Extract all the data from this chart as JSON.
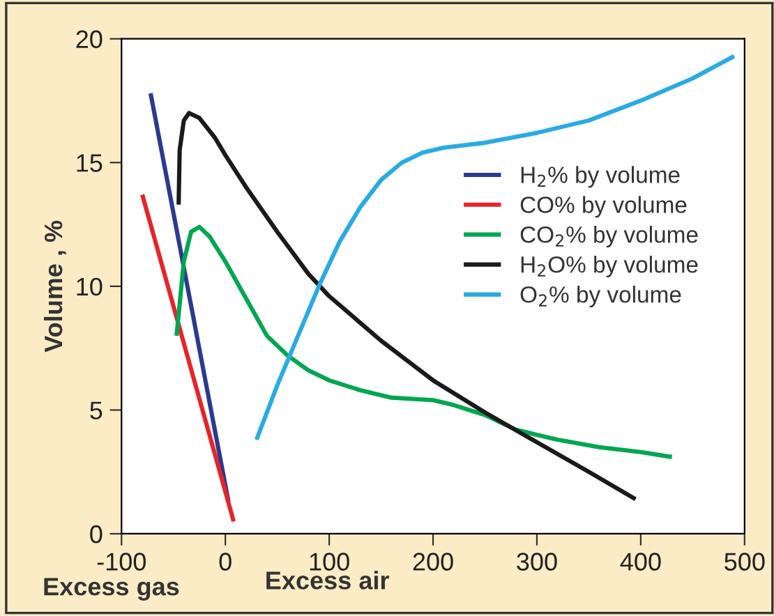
{
  "chart_data": {
    "type": "line",
    "ylabel": "Volume , %",
    "xlabel": "Excess air",
    "annotations": [
      "Excess gas"
    ],
    "xlim": [
      -100,
      500
    ],
    "ylim": [
      0,
      20
    ],
    "xticks": [
      -100,
      0,
      100,
      200,
      300,
      400,
      500
    ],
    "yticks": [
      0,
      5,
      10,
      15,
      20
    ],
    "grid": false,
    "legend": "right",
    "marker": "none",
    "line_style": "solid",
    "series": [
      {
        "name": "H$_{2}$% by volume",
        "color": "#2b3a8f",
        "x": [
          -72,
          3
        ],
        "values": [
          17.8,
          1.3
        ]
      },
      {
        "name": "CO% by volume",
        "color": "#e8232a",
        "x": [
          -80,
          8
        ],
        "values": [
          13.7,
          0.5
        ]
      },
      {
        "name": "CO$_{2}$% by volume",
        "color": "#00a651",
        "x": [
          -47,
          -40,
          -33,
          -25,
          -15,
          0,
          20,
          40,
          60,
          80,
          100,
          130,
          160,
          200,
          220,
          250,
          280,
          320,
          360,
          400,
          430
        ],
        "values": [
          8.0,
          11.0,
          12.2,
          12.4,
          12.0,
          11.0,
          9.5,
          8.0,
          7.2,
          6.6,
          6.2,
          5.8,
          5.5,
          5.4,
          5.2,
          4.8,
          4.2,
          3.8,
          3.5,
          3.3,
          3.1
        ]
      },
      {
        "name": "H$_{2}$O% by volume",
        "color": "#1a1a1a",
        "x": [
          -45,
          -44,
          -40,
          -35,
          -25,
          -10,
          0,
          20,
          50,
          80,
          100,
          150,
          200,
          250,
          300,
          350,
          395
        ],
        "values": [
          13.3,
          15.5,
          16.7,
          17.0,
          16.8,
          16.0,
          15.3,
          14.0,
          12.2,
          10.5,
          9.6,
          7.8,
          6.2,
          4.9,
          3.7,
          2.5,
          1.4
        ]
      },
      {
        "name": "O$_{2}$% by volume",
        "color": "#29abe2",
        "x": [
          30,
          50,
          70,
          90,
          110,
          130,
          150,
          170,
          190,
          210,
          250,
          300,
          350,
          400,
          450,
          490
        ],
        "values": [
          3.8,
          6.0,
          8.0,
          10.0,
          11.8,
          13.2,
          14.3,
          15.0,
          15.4,
          15.6,
          15.8,
          16.2,
          16.7,
          17.5,
          18.4,
          19.3
        ]
      }
    ]
  }
}
